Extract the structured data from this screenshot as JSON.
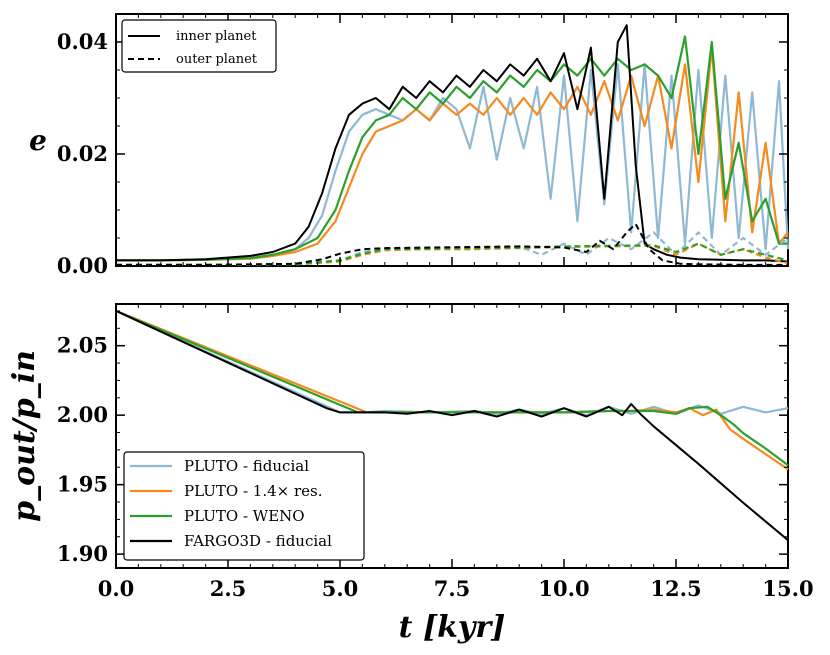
{
  "chart_data": [
    {
      "type": "line",
      "panel": "top",
      "xlabel": "",
      "ylabel": "e",
      "xlim": [
        0,
        15
      ],
      "ylim": [
        0,
        0.045
      ],
      "yticks": [
        0.0,
        0.02,
        0.04
      ],
      "ytick_labels": [
        "0.00",
        "0.02",
        "0.04"
      ],
      "legend": {
        "location": "top-left",
        "entries": [
          {
            "label": "inner planet",
            "style": "solid"
          },
          {
            "label": "outer planet",
            "style": "dashed"
          }
        ]
      },
      "series": [
        {
          "name": "PLUTO - fiducial (inner)",
          "color": "#8fb8d4",
          "style": "solid",
          "x": [
            0,
            1,
            2,
            3,
            3.5,
            4,
            4.3,
            4.6,
            4.9,
            5.2,
            5.5,
            5.8,
            6.1,
            6.4,
            6.7,
            7.0,
            7.3,
            7.6,
            7.9,
            8.2,
            8.5,
            8.8,
            9.1,
            9.4,
            9.7,
            10.0,
            10.3,
            10.6,
            10.9,
            11.2,
            11.5,
            11.8,
            12.1,
            12.4,
            12.7,
            13.0,
            13.3,
            13.6,
            13.9,
            14.2,
            14.5,
            14.8,
            15.0
          ],
          "y": [
            0.001,
            0.001,
            0.0012,
            0.0015,
            0.002,
            0.003,
            0.005,
            0.009,
            0.017,
            0.024,
            0.027,
            0.028,
            0.027,
            0.026,
            0.028,
            0.026,
            0.03,
            0.028,
            0.021,
            0.032,
            0.019,
            0.03,
            0.021,
            0.032,
            0.012,
            0.034,
            0.008,
            0.035,
            0.011,
            0.036,
            0.006,
            0.036,
            0.005,
            0.034,
            0.004,
            0.035,
            0.005,
            0.034,
            0.005,
            0.031,
            0.003,
            0.033,
            0.003
          ]
        },
        {
          "name": "PLUTO - 1.4x res. (inner)",
          "color": "#f58a1f",
          "style": "solid",
          "x": [
            0,
            1,
            2,
            3,
            3.5,
            4,
            4.5,
            4.9,
            5.2,
            5.5,
            5.8,
            6.1,
            6.4,
            6.7,
            7.0,
            7.3,
            7.6,
            7.9,
            8.2,
            8.5,
            8.8,
            9.1,
            9.4,
            9.7,
            10.0,
            10.3,
            10.6,
            10.9,
            11.2,
            11.5,
            11.8,
            12.1,
            12.4,
            12.7,
            13.0,
            13.3,
            13.6,
            13.9,
            14.2,
            14.5,
            14.8,
            15.0
          ],
          "y": [
            0.001,
            0.001,
            0.0011,
            0.0013,
            0.0018,
            0.0025,
            0.004,
            0.008,
            0.014,
            0.02,
            0.024,
            0.025,
            0.026,
            0.028,
            0.026,
            0.029,
            0.027,
            0.029,
            0.027,
            0.03,
            0.027,
            0.03,
            0.027,
            0.031,
            0.028,
            0.032,
            0.027,
            0.033,
            0.026,
            0.034,
            0.025,
            0.034,
            0.021,
            0.036,
            0.015,
            0.039,
            0.008,
            0.031,
            0.006,
            0.022,
            0.004,
            0.006
          ]
        },
        {
          "name": "PLUTO - WENO (inner)",
          "color": "#2ca02c",
          "style": "solid",
          "x": [
            0,
            1,
            2,
            3,
            3.5,
            4,
            4.5,
            4.9,
            5.2,
            5.5,
            5.8,
            6.1,
            6.4,
            6.7,
            7.0,
            7.3,
            7.6,
            7.9,
            8.2,
            8.5,
            8.8,
            9.1,
            9.4,
            9.7,
            10.0,
            10.3,
            10.6,
            10.9,
            11.2,
            11.5,
            11.8,
            12.1,
            12.4,
            12.7,
            13.0,
            13.3,
            13.6,
            13.9,
            14.2,
            14.5,
            14.8,
            15.0
          ],
          "y": [
            0.001,
            0.001,
            0.0011,
            0.0014,
            0.002,
            0.003,
            0.005,
            0.01,
            0.017,
            0.023,
            0.026,
            0.027,
            0.03,
            0.028,
            0.031,
            0.029,
            0.032,
            0.03,
            0.033,
            0.031,
            0.034,
            0.032,
            0.035,
            0.033,
            0.036,
            0.034,
            0.037,
            0.034,
            0.037,
            0.035,
            0.036,
            0.034,
            0.03,
            0.041,
            0.02,
            0.04,
            0.012,
            0.022,
            0.008,
            0.012,
            0.004,
            0.004
          ]
        },
        {
          "name": "FARGO3D - fiducial (inner)",
          "color": "#000000",
          "style": "solid",
          "x": [
            0,
            1,
            2,
            3,
            3.5,
            4,
            4.3,
            4.6,
            4.9,
            5.2,
            5.5,
            5.8,
            6.1,
            6.4,
            6.7,
            7.0,
            7.3,
            7.6,
            7.9,
            8.2,
            8.5,
            8.8,
            9.1,
            9.4,
            9.7,
            10.0,
            10.3,
            10.6,
            10.9,
            11.2,
            11.4,
            11.6,
            11.8,
            12.0,
            12.3,
            12.6,
            13.0,
            13.5,
            14.0,
            14.5,
            15.0
          ],
          "y": [
            0.001,
            0.001,
            0.0012,
            0.0018,
            0.0025,
            0.004,
            0.007,
            0.013,
            0.021,
            0.027,
            0.029,
            0.03,
            0.028,
            0.032,
            0.03,
            0.033,
            0.031,
            0.034,
            0.032,
            0.035,
            0.033,
            0.036,
            0.034,
            0.037,
            0.033,
            0.038,
            0.028,
            0.039,
            0.012,
            0.04,
            0.043,
            0.018,
            0.004,
            0.003,
            0.002,
            0.0015,
            0.0012,
            0.0011,
            0.001,
            0.001,
            0.0008
          ]
        },
        {
          "name": "PLUTO - fiducial (outer)",
          "color": "#8fb8d4",
          "style": "dashed",
          "x": [
            0,
            2,
            4,
            5.0,
            5.5,
            6,
            7,
            8,
            9,
            9.5,
            10,
            10.5,
            11,
            11.5,
            12,
            12.5,
            13,
            13.5,
            14,
            14.5,
            15
          ],
          "y": [
            0.0002,
            0.0002,
            0.0003,
            0.001,
            0.0025,
            0.003,
            0.003,
            0.003,
            0.0035,
            0.002,
            0.004,
            0.002,
            0.005,
            0.003,
            0.006,
            0.002,
            0.006,
            0.002,
            0.005,
            0.002,
            0.005
          ]
        },
        {
          "name": "PLUTO - 1.4x res. (outer)",
          "color": "#f58a1f",
          "style": "dashed",
          "x": [
            0,
            2,
            4,
            5.0,
            5.5,
            6,
            7,
            8,
            9,
            10,
            11,
            12,
            12.5,
            13,
            13.5,
            14,
            14.5,
            15
          ],
          "y": [
            0.0002,
            0.0002,
            0.0003,
            0.0008,
            0.002,
            0.0028,
            0.003,
            0.003,
            0.0032,
            0.0034,
            0.0035,
            0.0036,
            0.002,
            0.004,
            0.002,
            0.003,
            0.0015,
            0.0005
          ]
        },
        {
          "name": "PLUTO - WENO (outer)",
          "color": "#2ca02c",
          "style": "dashed",
          "x": [
            0,
            2,
            4,
            5.0,
            5.5,
            6,
            7,
            8,
            9,
            10,
            11,
            12,
            12.5,
            13,
            13.5,
            14,
            14.5,
            15
          ],
          "y": [
            0.0002,
            0.0002,
            0.0003,
            0.001,
            0.0022,
            0.003,
            0.0031,
            0.0032,
            0.0033,
            0.0035,
            0.0036,
            0.0037,
            0.0025,
            0.004,
            0.002,
            0.003,
            0.002,
            0.001
          ]
        },
        {
          "name": "FARGO3D - fiducial (outer)",
          "color": "#000000",
          "style": "dashed",
          "x": [
            0,
            2,
            4,
            4.6,
            5.0,
            5.5,
            6,
            7,
            8,
            9,
            10,
            10.5,
            10.8,
            11.1,
            11.4,
            11.6,
            11.9,
            12.2,
            12.6,
            13,
            14,
            15
          ],
          "y": [
            0.0002,
            0.0002,
            0.0004,
            0.0012,
            0.0022,
            0.003,
            0.0032,
            0.0033,
            0.0034,
            0.0035,
            0.0033,
            0.0025,
            0.0045,
            0.003,
            0.006,
            0.0075,
            0.003,
            0.001,
            0.0004,
            0.0003,
            0.0002,
            0.0002
          ]
        }
      ]
    },
    {
      "type": "line",
      "panel": "bottom",
      "xlabel": "t [kyr]",
      "ylabel": "p_out/p_in",
      "xlim": [
        0,
        15
      ],
      "ylim": [
        1.89,
        2.08
      ],
      "xticks": [
        0,
        2.5,
        5,
        7.5,
        10,
        12.5,
        15
      ],
      "xtick_labels": [
        "0.0",
        "2.5",
        "5.0",
        "7.5",
        "10.0",
        "12.5",
        "15.0"
      ],
      "yticks": [
        1.9,
        1.95,
        2.0,
        2.05
      ],
      "ytick_labels": [
        "1.90",
        "1.95",
        "2.00",
        "2.05"
      ],
      "legend": {
        "location": "bottom-left",
        "entries": [
          {
            "label": "PLUTO - fiducial",
            "color": "#8fb8d4"
          },
          {
            "label": "PLUTO - 1.4× res.",
            "color": "#f58a1f"
          },
          {
            "label": "PLUTO - WENO",
            "color": "#2ca02c"
          },
          {
            "label": "FARGO3D - fiducial",
            "color": "#000000"
          }
        ]
      },
      "series": [
        {
          "name": "PLUTO - fiducial",
          "color": "#8fb8d4",
          "x": [
            0,
            5.0,
            5.5,
            6,
            7,
            8,
            8.5,
            9,
            9.5,
            10,
            10.5,
            11,
            11.5,
            12,
            12.5,
            13,
            13.5,
            14,
            14.5,
            15
          ],
          "y": [
            2.075,
            2.002,
            2.002,
            2.003,
            2.002,
            2.003,
            2.001,
            2.004,
            2.001,
            2.005,
            2.0,
            2.006,
            2.001,
            2.006,
            2.001,
            2.007,
            2.001,
            2.006,
            2.002,
            2.005
          ]
        },
        {
          "name": "PLUTO - 1.4x res.",
          "color": "#f58a1f",
          "x": [
            0,
            5.6,
            6,
            7,
            8,
            9,
            10,
            11,
            11.5,
            12,
            12.5,
            12.8,
            13.1,
            13.4,
            13.7,
            14,
            14.5,
            15
          ],
          "y": [
            2.075,
            2.002,
            2.002,
            2.002,
            2.002,
            2.002,
            2.002,
            2.003,
            2.003,
            2.004,
            2.002,
            2.005,
            2.0,
            2.004,
            1.99,
            1.983,
            1.972,
            1.961
          ]
        },
        {
          "name": "PLUTO - WENO",
          "color": "#2ca02c",
          "x": [
            0,
            5.4,
            6,
            7,
            8,
            9,
            10,
            11,
            11.5,
            12,
            12.5,
            12.8,
            13.2,
            13.5,
            13.8,
            14,
            14.5,
            15
          ],
          "y": [
            2.075,
            2.002,
            2.002,
            2.002,
            2.002,
            2.002,
            2.002,
            2.003,
            2.003,
            2.003,
            2.001,
            2.005,
            2.006,
            2.0,
            1.993,
            1.987,
            1.976,
            1.964
          ]
        },
        {
          "name": "FARGO3D - fiducial",
          "color": "#000000",
          "x": [
            0,
            4.7,
            5.0,
            5.5,
            6,
            6.5,
            7,
            7.5,
            8,
            8.5,
            9,
            9.5,
            10,
            10.5,
            11,
            11.3,
            11.5,
            11.7,
            12,
            13,
            14,
            15
          ],
          "y": [
            2.075,
            2.005,
            2.002,
            2.002,
            2.002,
            2.001,
            2.003,
            2.0,
            2.003,
            1.999,
            2.004,
            1.999,
            2.005,
            1.999,
            2.006,
            2.0,
            2.008,
            2.001,
            1.992,
            1.965,
            1.937,
            1.91
          ]
        }
      ]
    }
  ]
}
